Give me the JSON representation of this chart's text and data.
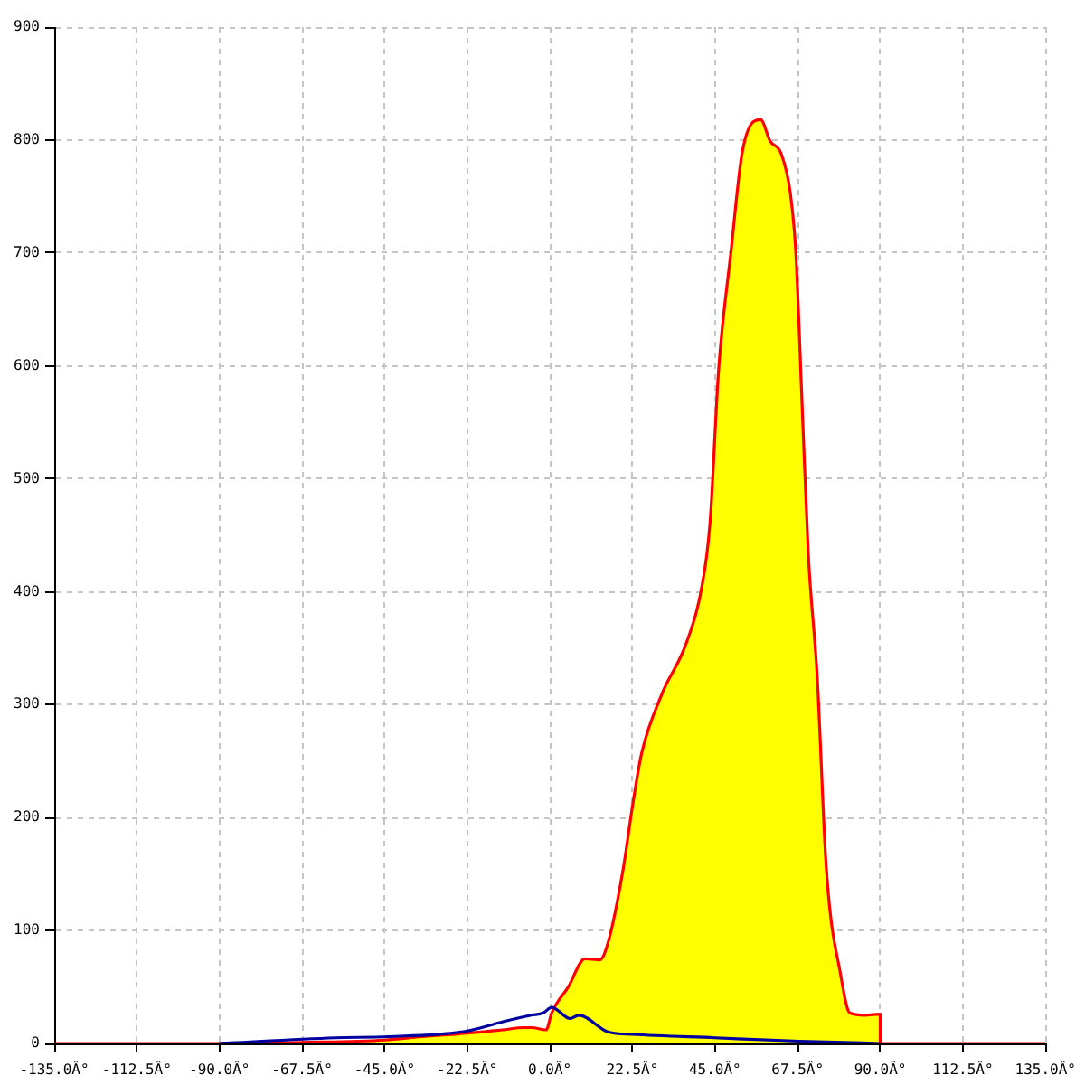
{
  "chart_data": {
    "type": "area",
    "xlim": [
      -135,
      135
    ],
    "ylim": [
      0,
      900
    ],
    "xticks": [
      {
        "value": -135,
        "label": "-135.0Â°"
      },
      {
        "value": -112.5,
        "label": "-112.5Â°"
      },
      {
        "value": -90,
        "label": "-90.0Â°"
      },
      {
        "value": -67.5,
        "label": "-67.5Â°"
      },
      {
        "value": -45,
        "label": "-45.0Â°"
      },
      {
        "value": -22.5,
        "label": "-22.5Â°"
      },
      {
        "value": 0,
        "label": "0.0Â°"
      },
      {
        "value": 22.5,
        "label": "22.5Â°"
      },
      {
        "value": 45,
        "label": "45.0Â°"
      },
      {
        "value": 67.5,
        "label": "67.5Â°"
      },
      {
        "value": 90,
        "label": "90.0Â°"
      },
      {
        "value": 112.5,
        "label": "112.5Â°"
      },
      {
        "value": 135,
        "label": "135.0Â°"
      }
    ],
    "yticks": [
      0,
      100,
      200,
      300,
      400,
      500,
      600,
      700,
      800,
      900
    ],
    "grid": true,
    "marker": "none",
    "series": [
      {
        "type": "area",
        "color": "#ffff00",
        "x": [
          -90,
          -67.5,
          -45,
          -35,
          -22.5,
          -13,
          -7,
          -5,
          -1,
          0.5,
          5,
          9.6,
          13.6,
          16,
          20,
          22.5,
          25,
          30.6,
          37,
          41.2,
          43.6,
          46,
          49.3,
          52.5,
          57.4,
          60,
          63,
          65.5,
          67,
          68.7,
          70.4,
          72.8,
          75.3,
          79.3,
          81.7,
          85.8,
          90,
          90
        ],
        "values": [
          0,
          1,
          3,
          6,
          9,
          12,
          14,
          14,
          12,
          27,
          50,
          75,
          74,
          91,
          155,
          210,
          257,
          310,
          353,
          401,
          460,
          598,
          700,
          791,
          818,
          799,
          788,
          753,
          700,
          566,
          433,
          326,
          155,
          59,
          27,
          25,
          26,
          0
        ]
      },
      {
        "type": "line",
        "color": "#ff0000",
        "x": [
          -135,
          -90,
          -67.5,
          -45,
          -35,
          -22.5,
          -13,
          -7,
          -5,
          -1,
          0.5,
          5,
          9.6,
          13.6,
          16,
          20,
          22.5,
          25,
          30.6,
          37,
          41.2,
          43.6,
          46,
          49.3,
          52.5,
          57.4,
          60,
          63,
          65.5,
          67,
          68.7,
          70.4,
          72.8,
          75.3,
          79.3,
          81.7,
          85.8,
          90,
          90,
          135
        ],
        "values": [
          0,
          0,
          1,
          3,
          6,
          9,
          12,
          14,
          14,
          12,
          27,
          50,
          75,
          74,
          91,
          155,
          210,
          257,
          310,
          353,
          401,
          460,
          598,
          700,
          791,
          818,
          799,
          788,
          753,
          700,
          566,
          433,
          326,
          155,
          59,
          27,
          25,
          26,
          0,
          0
        ]
      },
      {
        "type": "line",
        "color": "#0000a0",
        "x": [
          -90,
          -58.5,
          -44,
          -22.5,
          -13,
          -5,
          -1.8,
          0.5,
          5.5,
          7.9,
          16,
          22.5,
          45,
          68,
          90
        ],
        "values": [
          0,
          5,
          6,
          11,
          19,
          25,
          27,
          32,
          22,
          25,
          10,
          8,
          5,
          2,
          0
        ]
      }
    ]
  }
}
